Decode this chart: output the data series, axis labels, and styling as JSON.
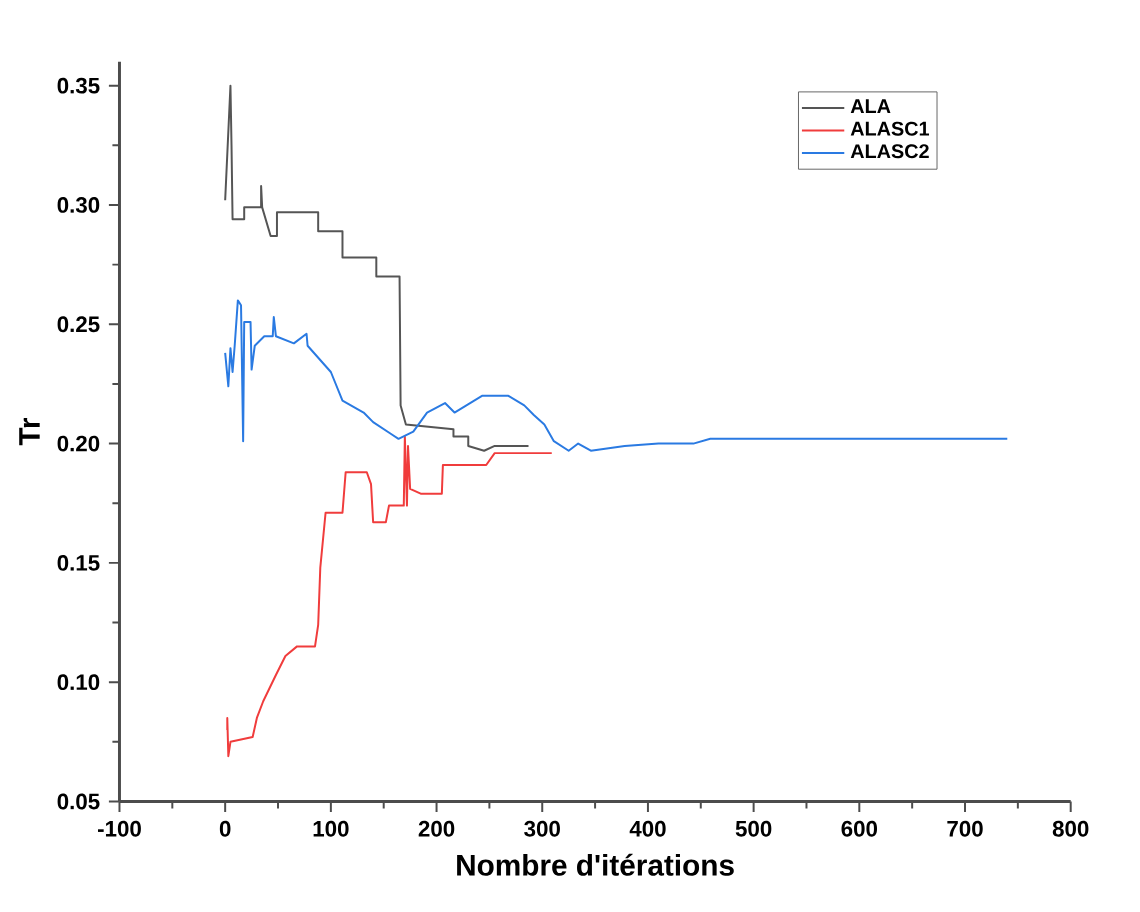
{
  "chart_data": {
    "type": "line",
    "xlabel": "Nombre d'itérations",
    "ylabel": "Tr",
    "xlim": [
      -100,
      800
    ],
    "ylim": [
      0.05,
      0.36
    ],
    "xticks": [
      -100,
      0,
      100,
      200,
      300,
      400,
      500,
      600,
      700,
      800
    ],
    "yticks": [
      0.05,
      {
        "value": 0.1,
        "label": "0.10"
      },
      0.15,
      {
        "value": 0.2,
        "label": "0.20"
      },
      0.25,
      {
        "value": 0.3,
        "label": "0.30"
      },
      0.35
    ],
    "grid": false,
    "legend": "top right",
    "marker": "none",
    "line_style": "solid",
    "series": [
      {
        "name": "ALA",
        "color": "#555555",
        "x": [
          0,
          5,
          6,
          7,
          18,
          18,
          34,
          34,
          35,
          43,
          49,
          49,
          88,
          88,
          111,
          111,
          143,
          143,
          165,
          166,
          171,
          216,
          216,
          230,
          230,
          245,
          255,
          287
        ],
        "values": [
          0.302,
          0.35,
          0.325,
          0.294,
          0.294,
          0.299,
          0.299,
          0.308,
          0.299,
          0.287,
          0.287,
          0.297,
          0.297,
          0.289,
          0.289,
          0.278,
          0.278,
          0.27,
          0.27,
          0.216,
          0.208,
          0.206,
          0.203,
          0.203,
          0.199,
          0.197,
          0.199,
          0.199
        ]
      },
      {
        "name": "ALASC1",
        "color": "#f03c3c",
        "x": [
          2,
          2,
          3,
          5,
          26,
          30,
          36,
          48,
          57,
          68,
          85,
          88,
          90,
          95,
          111,
          114,
          134,
          138,
          140,
          152,
          155,
          169,
          170,
          172,
          173,
          175,
          185,
          205,
          206,
          247,
          255,
          309
        ],
        "values": [
          0.08,
          0.085,
          0.069,
          0.075,
          0.077,
          0.085,
          0.092,
          0.103,
          0.111,
          0.115,
          0.115,
          0.124,
          0.148,
          0.171,
          0.171,
          0.188,
          0.188,
          0.183,
          0.167,
          0.167,
          0.174,
          0.174,
          0.203,
          0.174,
          0.199,
          0.181,
          0.179,
          0.179,
          0.191,
          0.191,
          0.196,
          0.196
        ]
      },
      {
        "name": "ALASC2",
        "color": "#2a7ae2",
        "x": [
          0,
          3,
          5,
          7,
          9,
          12,
          15,
          17,
          18,
          24,
          25,
          28,
          37,
          45,
          46,
          48,
          65,
          77,
          78,
          100,
          111,
          131,
          140,
          157,
          164,
          178,
          191,
          208,
          217,
          243,
          268,
          283,
          292,
          302,
          311,
          325,
          334,
          346,
          378,
          410,
          443,
          459,
          494,
          740
        ],
        "values": [
          0.238,
          0.224,
          0.24,
          0.23,
          0.241,
          0.26,
          0.258,
          0.201,
          0.251,
          0.251,
          0.231,
          0.241,
          0.245,
          0.245,
          0.253,
          0.245,
          0.242,
          0.246,
          0.241,
          0.23,
          0.218,
          0.213,
          0.209,
          0.204,
          0.202,
          0.205,
          0.213,
          0.217,
          0.213,
          0.22,
          0.22,
          0.216,
          0.212,
          0.208,
          0.201,
          0.197,
          0.2,
          0.197,
          0.199,
          0.2,
          0.2,
          0.202,
          0.202,
          0.202
        ]
      }
    ]
  }
}
